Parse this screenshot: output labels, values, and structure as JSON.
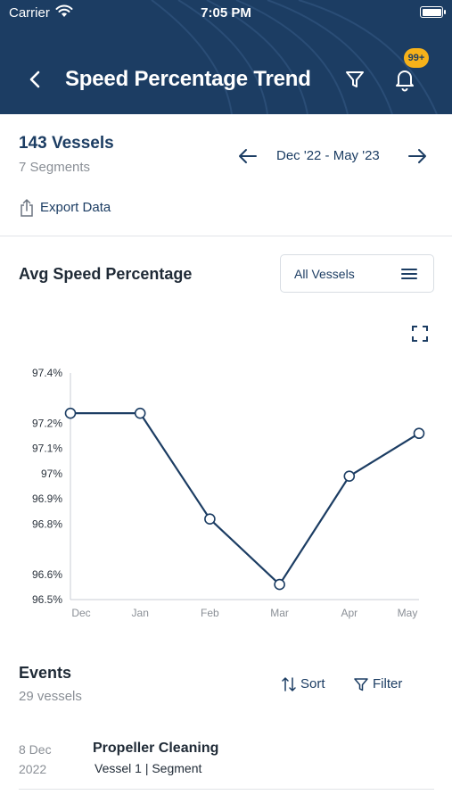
{
  "status_bar": {
    "carrier": "Carrier",
    "time": "7:05 PM"
  },
  "header": {
    "title": "Speed Percentage Trend",
    "notification_badge": "99+"
  },
  "summary": {
    "vessels": "143 Vessels",
    "segments": "7 Segments",
    "date_range": "Dec '22 - May '23",
    "export_label": "Export Data"
  },
  "chart_section": {
    "title": "Avg Speed Percentage",
    "vessel_filter": "All Vessels"
  },
  "chart_data": {
    "type": "line",
    "categories": [
      "Dec",
      "Jan",
      "Feb",
      "Mar",
      "Apr",
      "May"
    ],
    "series": [
      {
        "values": [
          97.24,
          97.24,
          96.82,
          96.56,
          96.99,
          97.16
        ]
      }
    ],
    "y_ticks": [
      "97.4%",
      "97.2%",
      "97.1%",
      "97%",
      "96.9%",
      "96.8%",
      "96.6%",
      "96.5%"
    ],
    "ylim": [
      96.5,
      97.4
    ],
    "line_color": "#1c3d63",
    "grid": false
  },
  "events": {
    "title": "Events",
    "count": "29 vessels",
    "sort_label": "Sort",
    "filter_label": "Filter",
    "items": [
      {
        "day": "8 Dec",
        "year": "2022",
        "name": "Propeller Cleaning",
        "details": "Vessel 1  |  Segment"
      }
    ]
  },
  "colors": {
    "header_bg": "#1c3d63",
    "badge": "#f6b21a",
    "accent": "#1c3d63"
  }
}
